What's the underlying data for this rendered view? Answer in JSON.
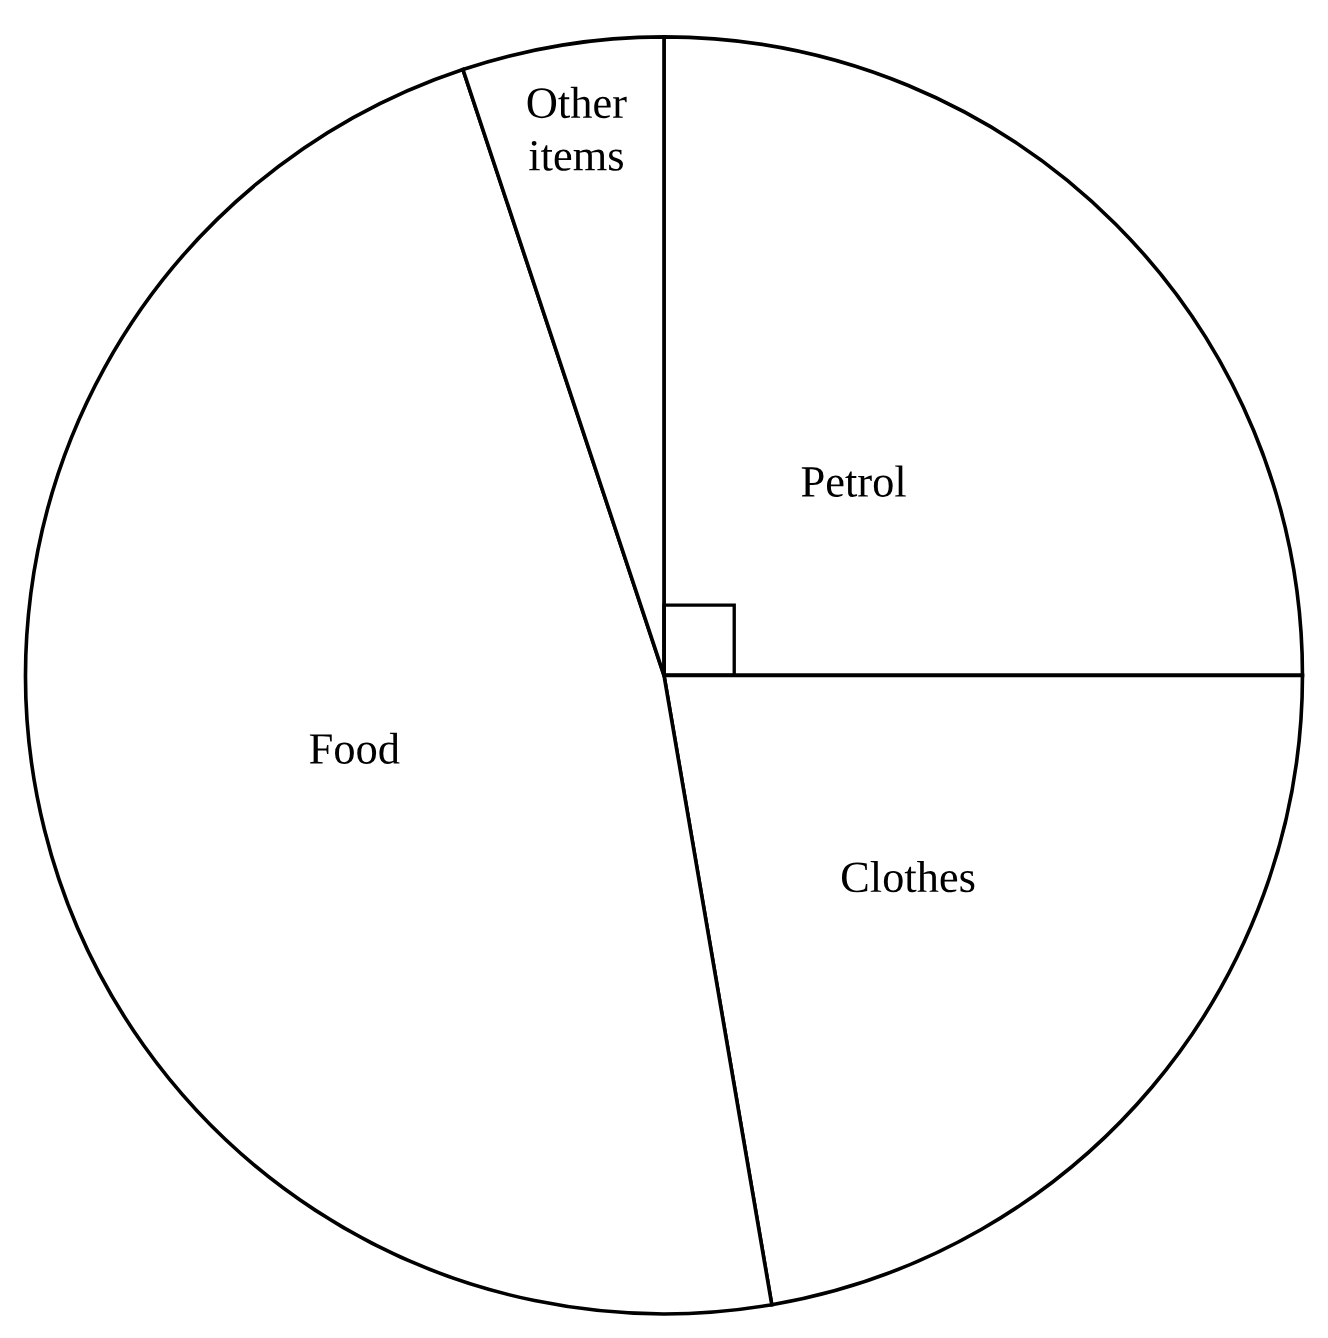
{
  "chart_data": {
    "type": "pie",
    "categories": [
      "Petrol",
      "Clothes",
      "Food",
      "Other\nitems"
    ],
    "values": [
      25,
      22.3,
      47.6,
      5.1
    ],
    "colors": [
      "#ffffff",
      "#ffffff",
      "#ffffff",
      "#ffffff"
    ],
    "legend": false
  }
}
